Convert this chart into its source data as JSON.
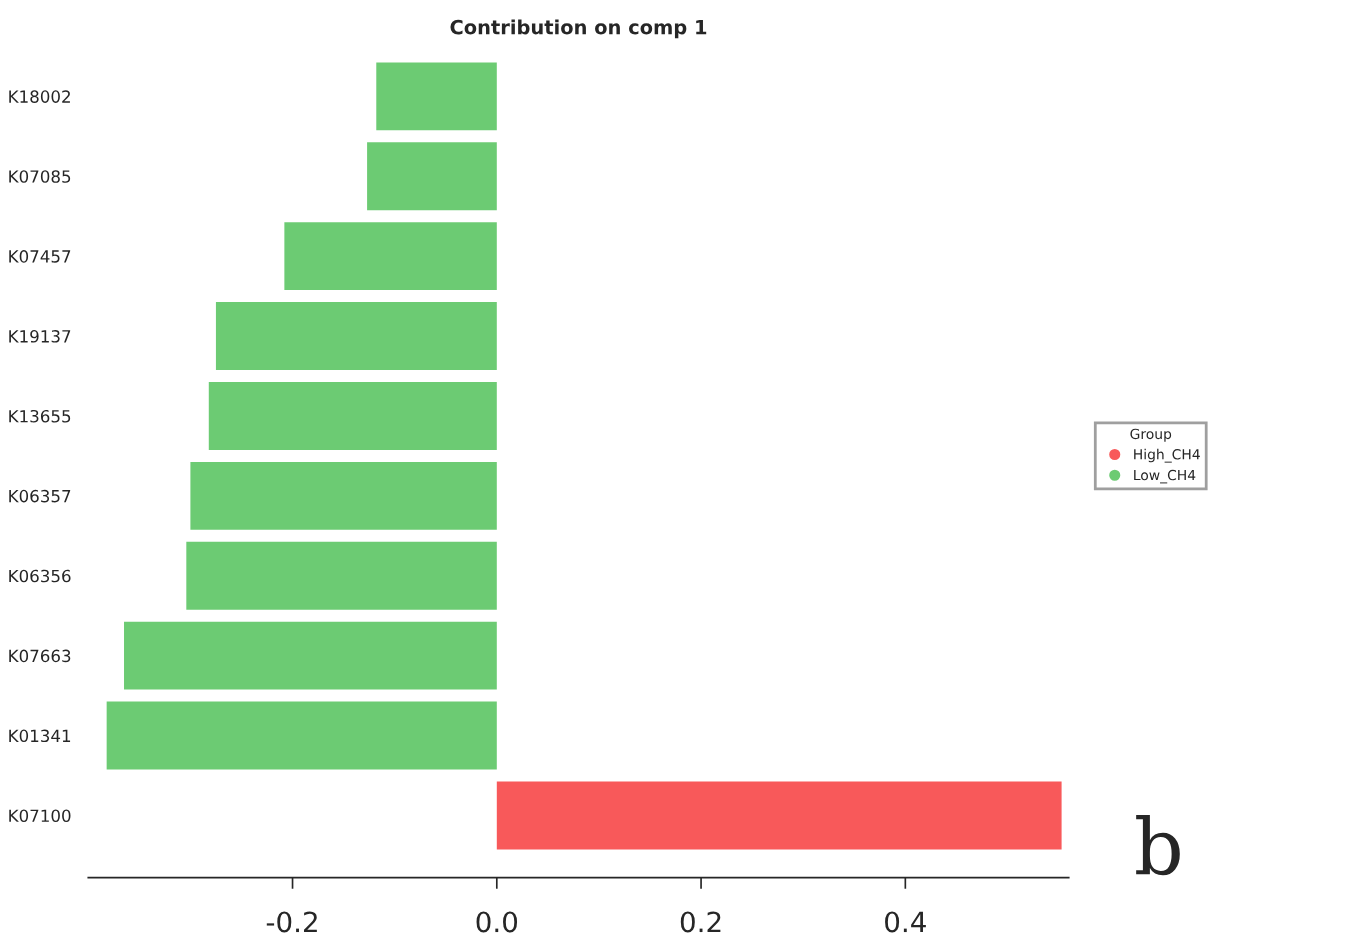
{
  "chart_data": {
    "type": "bar",
    "orientation": "horizontal",
    "title": "Contribution on comp 1",
    "categories": [
      "K18002",
      "K07085",
      "K07457",
      "K19137",
      "K13655",
      "K06357",
      "K06356",
      "K07663",
      "K01341",
      "K07100"
    ],
    "series": [
      {
        "name": "High_CH4",
        "color": "#f8595a",
        "values": [
          null,
          null,
          null,
          null,
          null,
          null,
          null,
          null,
          null,
          0.553
        ]
      },
      {
        "name": "Low_CH4",
        "color": "#6ccb73",
        "values": [
          -0.118,
          -0.127,
          -0.208,
          -0.275,
          -0.282,
          -0.3,
          -0.304,
          -0.365,
          -0.382,
          null
        ]
      }
    ],
    "legend_title": "Group",
    "legend": "right",
    "grid": false,
    "xlim": [
      -0.4,
      0.56
    ],
    "xticks": [
      {
        "value": -0.2,
        "label": "-0.2"
      },
      {
        "value": 0,
        "label": "0.0"
      },
      {
        "value": 0.2,
        "label": "0.2"
      },
      {
        "value": 0.4,
        "label": "0.4"
      }
    ],
    "annotations": [
      "b"
    ]
  }
}
